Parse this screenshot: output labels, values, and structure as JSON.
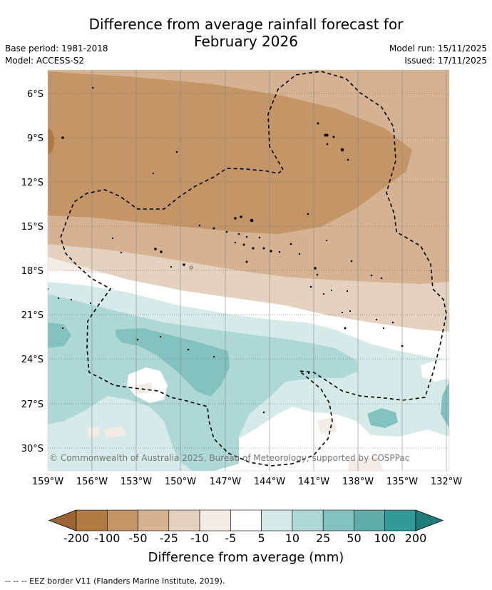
{
  "title_line1": "Difference from average rainfall forecast for",
  "title_line2": "February 2026",
  "meta_left": {
    "base_period": "Base period: 1981-2018",
    "model": "Model: ACCESS-S2"
  },
  "meta_right": {
    "model_run": "Model run: 15/11/2025",
    "issued": "Issued: 17/11/2025"
  },
  "lat_labels": [
    "6°S",
    "9°S",
    "12°S",
    "15°S",
    "18°S",
    "21°S",
    "24°S",
    "27°S",
    "30°S"
  ],
  "lon_labels": [
    "159°W",
    "156°W",
    "153°W",
    "150°W",
    "147°W",
    "144°W",
    "141°W",
    "138°W",
    "135°W",
    "132°W"
  ],
  "copyright": "© Commonwealth of Australia 2025, Bureau of Meteorology, supported by COSPPac",
  "colorbar": {
    "labels": [
      "-200",
      "-100",
      "-50",
      "-25",
      "-10",
      "-5",
      "5",
      "10",
      "25",
      "50",
      "100",
      "200"
    ],
    "colors": [
      "#9b6432",
      "#b07a42",
      "#c49566",
      "#d5b291",
      "#e5d1bf",
      "#f2ece4",
      "#ffffff",
      "#d6ebe9",
      "#aed8d6",
      "#83c1bf",
      "#5fadaa",
      "#339b97",
      "#1f7c78"
    ],
    "title": "Difference from average (mm)"
  },
  "footer": "--  --  -- EEZ border V11 (Flanders Marine Institute, 2019)."
}
